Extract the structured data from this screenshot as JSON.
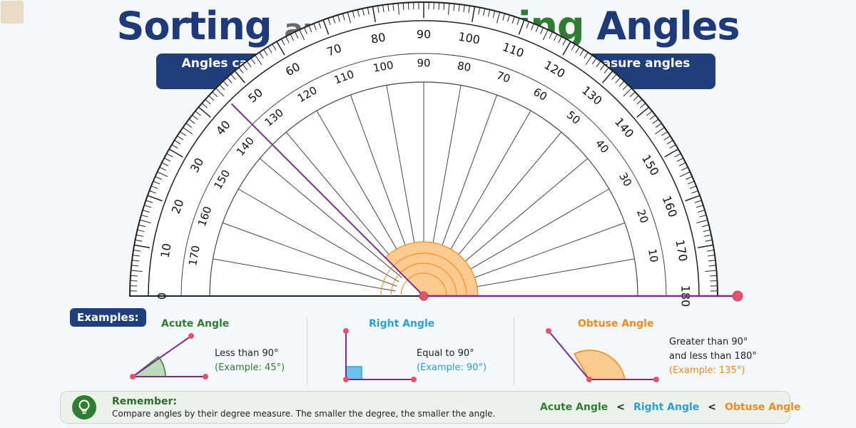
{
  "title": {
    "word1": "Sorting",
    "word2": "and",
    "word3": "Comparing",
    "word4": "Angles"
  },
  "banner": "Angles can be compared by their size. Use a protractor to measure angles and arrange them from smallest to largest.",
  "protractor": {
    "outer_scale_labels": [
      "0",
      "10",
      "20",
      "30",
      "40",
      "50",
      "60",
      "70",
      "80",
      "90",
      "100",
      "110",
      "120",
      "130",
      "140",
      "150",
      "160",
      "170",
      "180"
    ],
    "measured_line_angle_deg": 135,
    "colors": {
      "line": "#7b2d8e",
      "wedge": "#fcc98f",
      "point": "#e6526b"
    }
  },
  "examples": {
    "label": "Examples:",
    "acute": {
      "title": "Acute Angle",
      "desc": "Less than 90°",
      "example": "(Example: 45°)",
      "color": "#2f7d32"
    },
    "right": {
      "title": "Right Angle",
      "desc": "Equal to 90°",
      "example": "(Example: 90°)",
      "color": "#2a9fd8"
    },
    "obtuse": {
      "title": "Obtuse Angle",
      "desc1": "Greater than 90°",
      "desc2": "and less than 180°",
      "example": "(Example: 135°)",
      "color": "#f08a1c"
    }
  },
  "remember": {
    "title": "Remember:",
    "text": "Compare angles by their degree measure. The smaller the degree, the smaller the angle.",
    "order": [
      "Acute Angle",
      "Right Angle",
      "Obtuse Angle"
    ],
    "separator": "<",
    "icon": "lightbulb-icon"
  }
}
